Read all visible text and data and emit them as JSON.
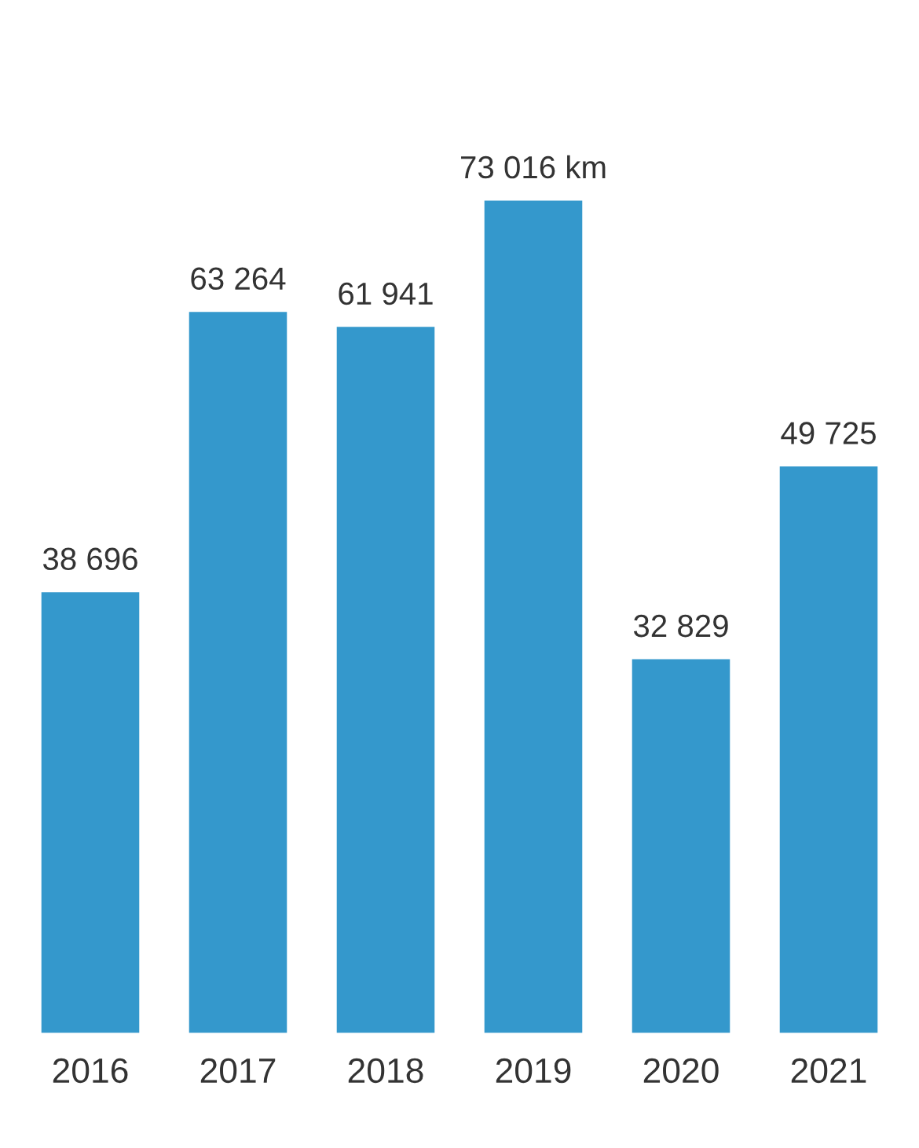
{
  "chart_data": {
    "type": "bar",
    "categories": [
      "2016",
      "2017",
      "2018",
      "2019",
      "2020",
      "2021"
    ],
    "values": [
      38696,
      63264,
      61941,
      73016,
      32829,
      49725
    ],
    "value_labels": [
      "38 696",
      "63 264",
      "61 941",
      "73 016 km",
      "32 829",
      "49 725"
    ],
    "color": "#3498cc",
    "tick_labels": "x",
    "grid": false
  }
}
